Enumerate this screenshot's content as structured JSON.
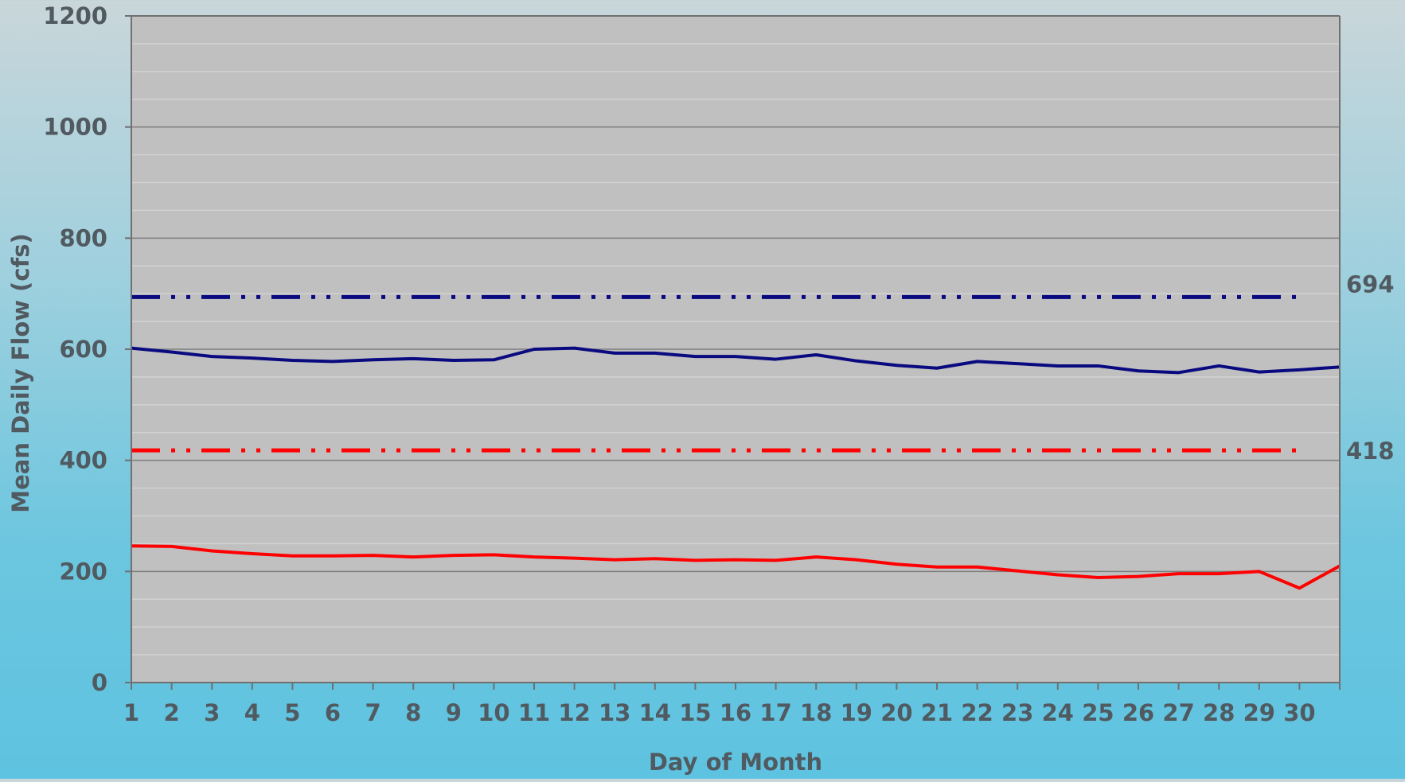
{
  "chart_data": {
    "type": "line",
    "xlabel": "Day of Month",
    "ylabel": "Mean Daily Flow (cfs)",
    "ylim": [
      0,
      1200
    ],
    "yticks": [
      0,
      200,
      400,
      600,
      800,
      1000,
      1200
    ],
    "x": [
      1,
      2,
      3,
      4,
      5,
      6,
      7,
      8,
      9,
      10,
      11,
      12,
      13,
      14,
      15,
      16,
      17,
      18,
      19,
      20,
      21,
      22,
      23,
      24,
      25,
      26,
      27,
      28,
      29,
      30,
      31
    ],
    "xtick_labels": [
      "1",
      "2",
      "3",
      "4",
      "5",
      "6",
      "7",
      "8",
      "9",
      "10",
      "11",
      "12",
      "13",
      "14",
      "15",
      "16",
      "17",
      "18",
      "19",
      "20",
      "21",
      "22",
      "23",
      "24",
      "25",
      "26",
      "27",
      "28",
      "29",
      "30"
    ],
    "grid": "horizontal",
    "series": [
      {
        "color": "#0a0a80",
        "style": "solid",
        "values": [
          602,
          595,
          587,
          584,
          580,
          578,
          581,
          583,
          580,
          581,
          600,
          602,
          593,
          593,
          587,
          587,
          582,
          590,
          579,
          571,
          566,
          578,
          574,
          570,
          570,
          561,
          558,
          570,
          559,
          563,
          568
        ]
      },
      {
        "color": "#ff0000",
        "style": "solid",
        "values": [
          246,
          245,
          237,
          232,
          228,
          228,
          229,
          226,
          229,
          230,
          226,
          224,
          221,
          223,
          220,
          221,
          220,
          226,
          221,
          213,
          208,
          208,
          201,
          194,
          189,
          191,
          196,
          196,
          200,
          170,
          210
        ]
      },
      {
        "color": "#0a0a80",
        "style": "dash-dot-dot",
        "constant": 694,
        "x_range": [
          1,
          30
        ],
        "label": "694"
      },
      {
        "color": "#ff0000",
        "style": "dash-dot-dot",
        "constant": 418,
        "x_range": [
          1,
          30
        ],
        "label": "418"
      }
    ]
  }
}
